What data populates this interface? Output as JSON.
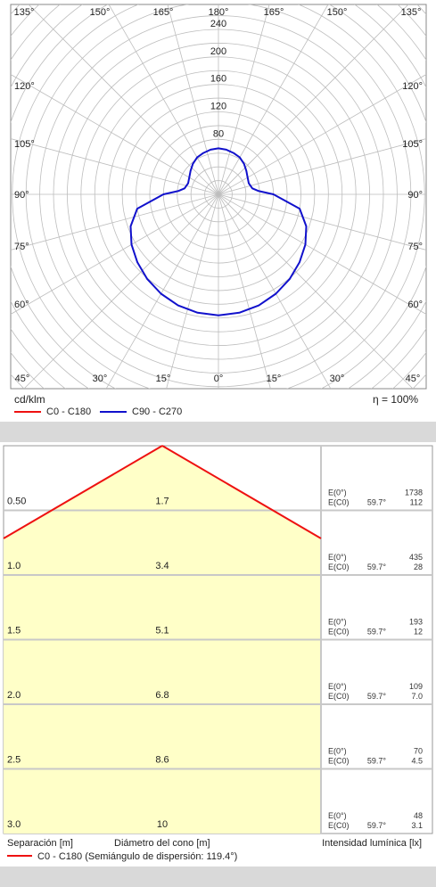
{
  "polar": {
    "unit_label": "cd/klm",
    "efficiency_label": "η = 100%",
    "radial_ticks": [
      80,
      120,
      160,
      200,
      240
    ],
    "r_max": 240,
    "top_angles": [
      "135°",
      "150°",
      "165°",
      "180°",
      "165°",
      "150°",
      "135°"
    ],
    "bottom_angles": [
      "45°",
      "30°",
      "15°",
      "0°",
      "15°",
      "30°",
      "45°"
    ],
    "side_angles_left": [
      "120°",
      "105°",
      "90°",
      "75°",
      "60°"
    ],
    "side_angles_right": [
      "120°",
      "105°",
      "90°",
      "75°",
      "60°"
    ],
    "legend": [
      {
        "label": "C0 - C180",
        "color": "#ee1111"
      },
      {
        "label": "C90 - C270",
        "color": "#1111cc"
      }
    ]
  },
  "chart_data": {
    "type": "polar",
    "unit": "cd/klm",
    "r_max": 240,
    "series": [
      {
        "name": "C90 - C270",
        "color": "#1111cc",
        "angles": [
          0,
          10,
          20,
          30,
          40,
          50,
          60,
          70,
          80,
          90,
          95,
          100,
          110,
          120,
          130,
          140,
          150,
          160,
          170,
          180
        ],
        "values": [
          176,
          175,
          172,
          167,
          161,
          154,
          146,
          136,
          120,
          80,
          58,
          50,
          47,
          49,
          53,
          58,
          62,
          64,
          66,
          67
        ]
      }
    ]
  },
  "cone": {
    "legend_text": "C0 - C180 (Semiángulo de dispersión: 119.4°)",
    "legend_color": "#ee1111",
    "footer": {
      "separation": "Separación [m]",
      "diameter": "Diámetro del cono [m]",
      "intensity": "Intensidad lumínica [lx]"
    },
    "rows": [
      {
        "separation": "0.50",
        "diameter": "1.7",
        "e0_label": "E(0°)",
        "ec0_label": "E(C0)",
        "angle": "59.7°",
        "e0": "1738",
        "ec0": "112"
      },
      {
        "separation": "1.0",
        "diameter": "3.4",
        "e0_label": "E(0°)",
        "ec0_label": "E(C0)",
        "angle": "59.7°",
        "e0": "435",
        "ec0": "28"
      },
      {
        "separation": "1.5",
        "diameter": "5.1",
        "e0_label": "E(0°)",
        "ec0_label": "E(C0)",
        "angle": "59.7°",
        "e0": "193",
        "ec0": "12"
      },
      {
        "separation": "2.0",
        "diameter": "6.8",
        "e0_label": "E(0°)",
        "ec0_label": "E(C0)",
        "angle": "59.7°",
        "e0": "109",
        "ec0": "7.0"
      },
      {
        "separation": "2.5",
        "diameter": "8.6",
        "e0_label": "E(0°)",
        "ec0_label": "E(C0)",
        "angle": "59.7°",
        "e0": "70",
        "ec0": "4.5"
      },
      {
        "separation": "3.0",
        "diameter": "10",
        "e0_label": "E(0°)",
        "ec0_label": "E(C0)",
        "angle": "59.7°",
        "e0": "48",
        "ec0": "3.1"
      }
    ]
  }
}
